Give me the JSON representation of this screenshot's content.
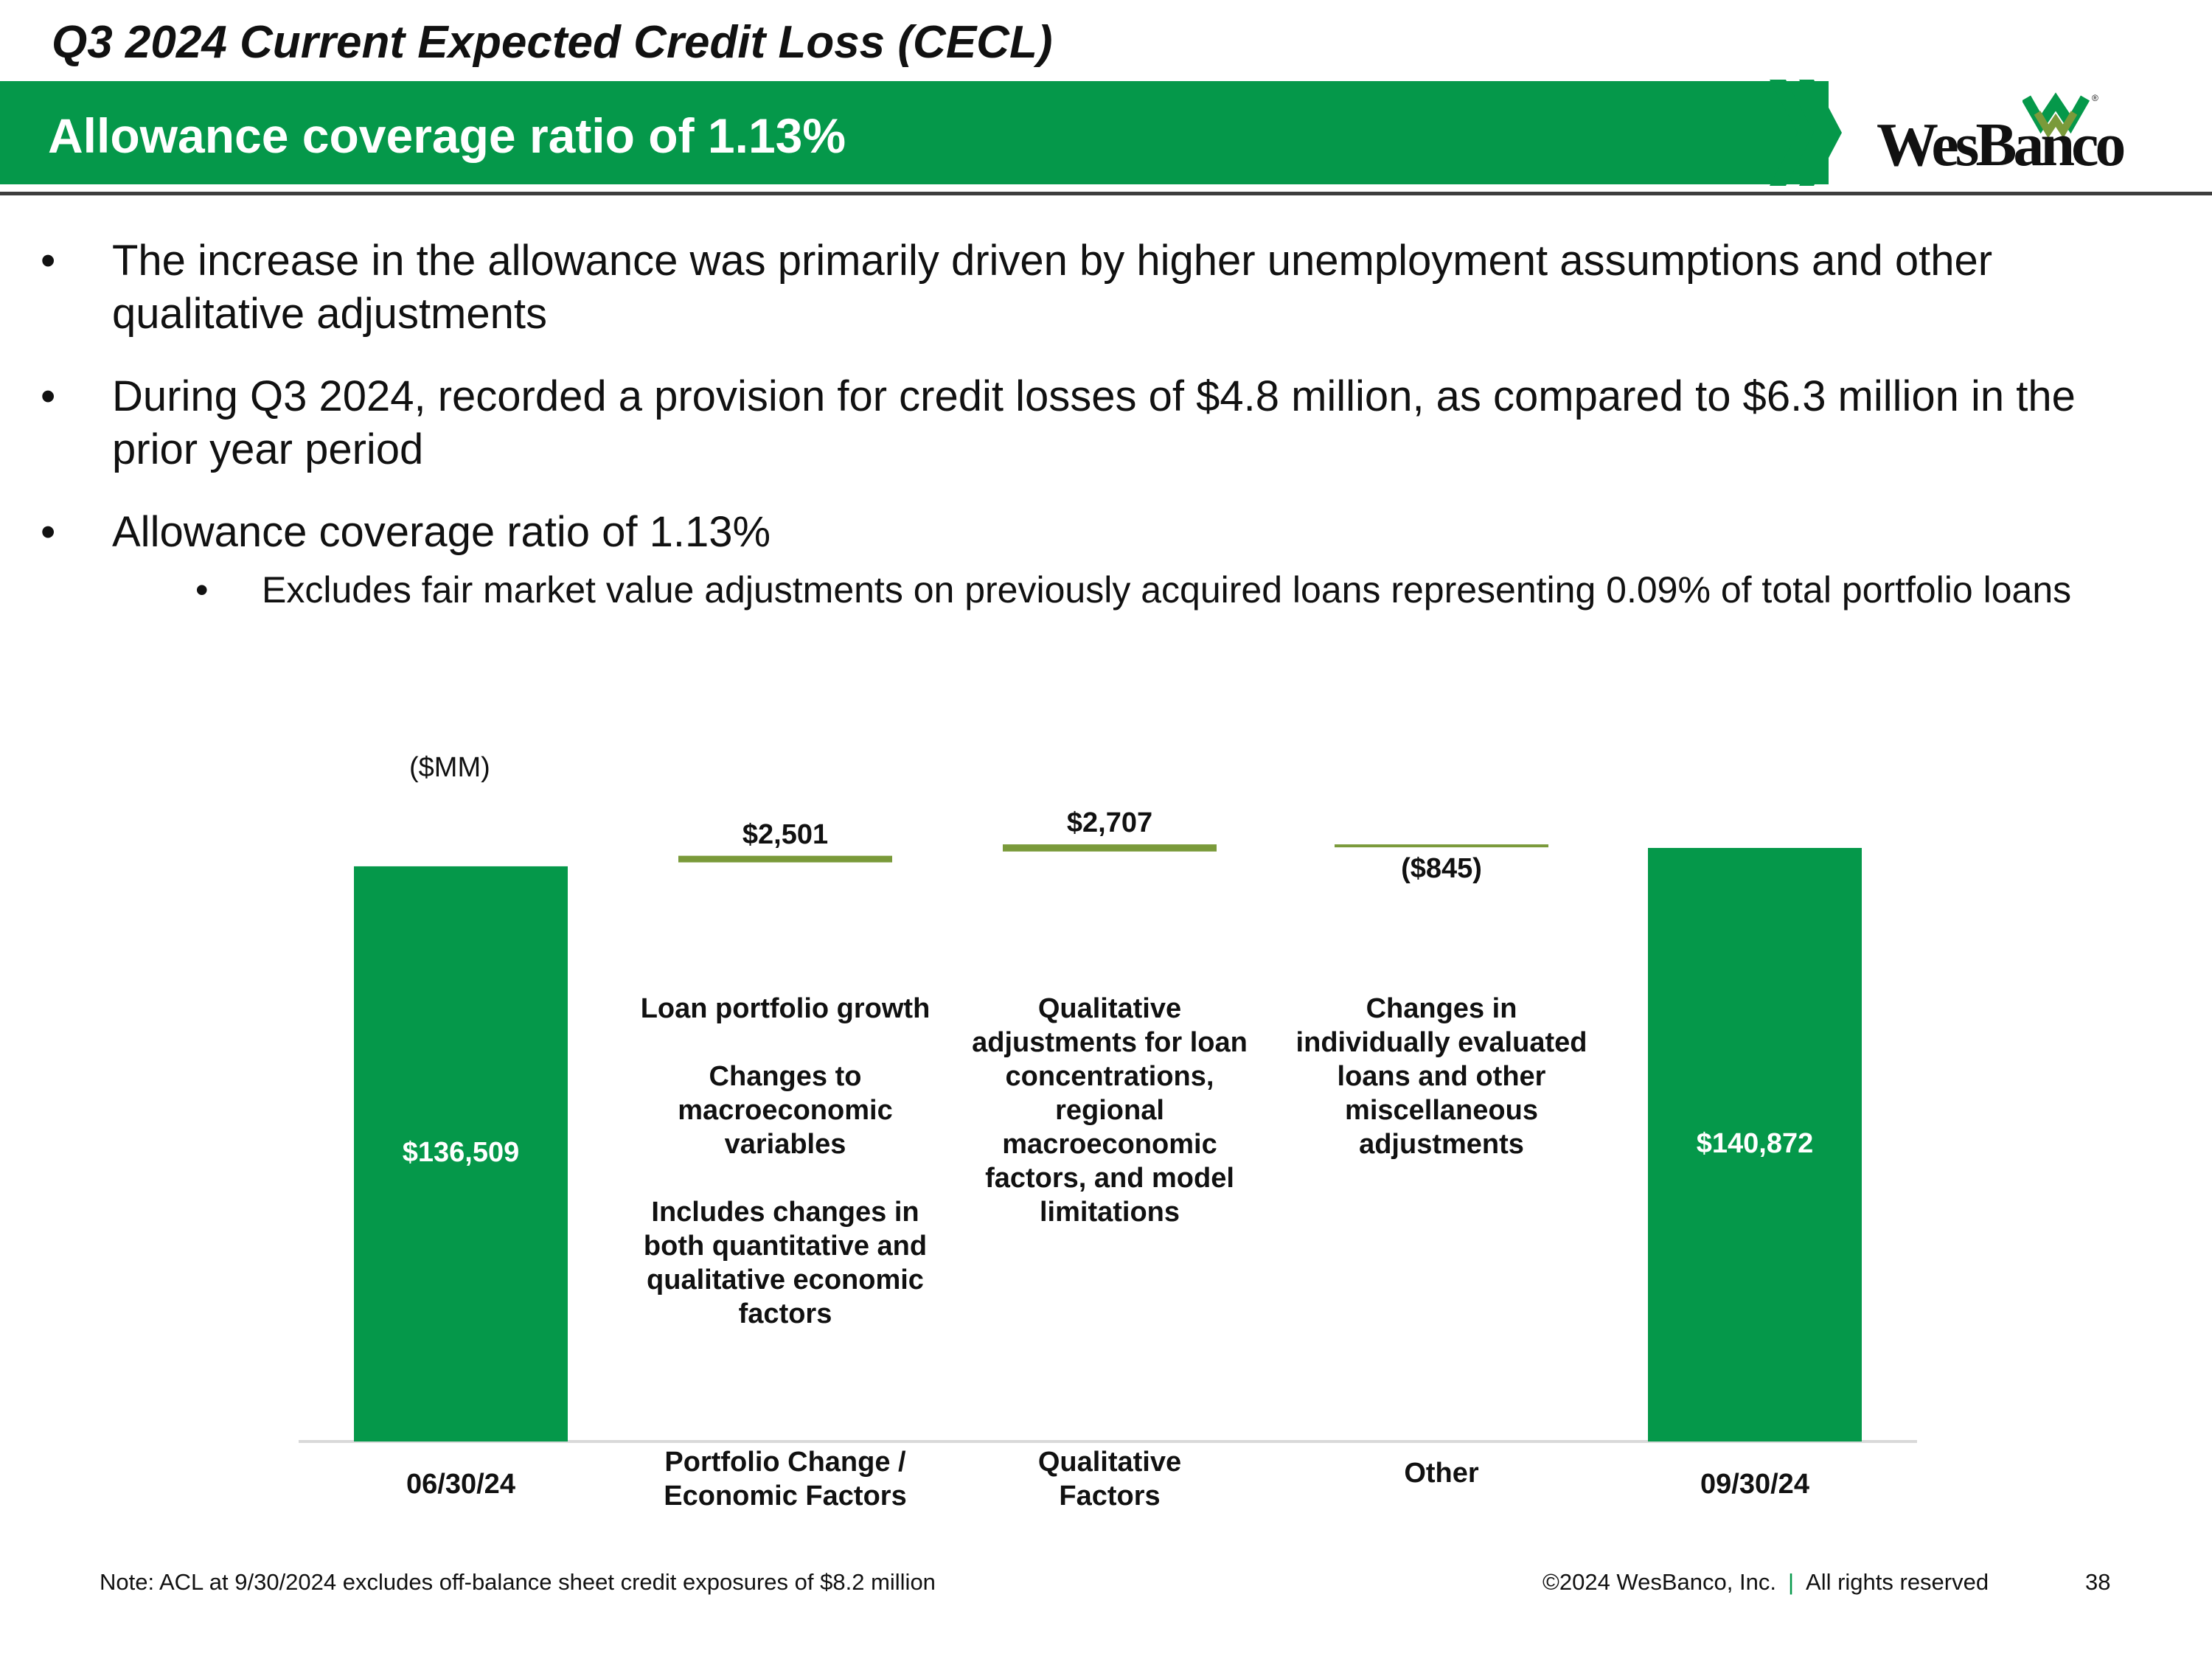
{
  "header": {
    "title": "Q3 2024 Current Expected Credit Loss (CECL)",
    "banner": "Allowance coverage ratio of 1.13%",
    "logo_text": "WesBanco",
    "logo_registered": "®"
  },
  "bullets": [
    {
      "level": 1,
      "text": "The increase in the allowance was primarily driven by higher unemployment assumptions and other qualitative adjustments"
    },
    {
      "level": 1,
      "text": "During Q3 2024, recorded a provision for credit losses of $4.8 million, as compared to $6.3 million in the prior year period"
    },
    {
      "level": 1,
      "text": "Allowance coverage ratio of 1.13%"
    },
    {
      "level": 2,
      "text": "Excludes fair market value adjustments on previously acquired loans representing 0.09% of total portfolio loans"
    }
  ],
  "bullet_glyph": "•",
  "chart_data": {
    "type": "bar",
    "subtype": "waterfall",
    "unit_label": "($MM)",
    "categories": [
      "06/30/24",
      "Portfolio Change / Economic Factors",
      "Qualitative Factors",
      "Other",
      "09/30/24"
    ],
    "values": [
      136509,
      2501,
      2707,
      -845,
      140872
    ],
    "kinds": [
      "total",
      "delta",
      "delta",
      "delta",
      "total"
    ],
    "value_labels": [
      "$136,509",
      "$2,501",
      "$2,707",
      "($845)",
      "$140,872"
    ],
    "descriptions": [
      "",
      "Loan portfolio growth\n\nChanges to macroeconomic variables\n\nIncludes changes in both quantitative and qualitative economic factors",
      "Qualitative adjustments for loan concentrations, regional macroeconomic factors, and model limitations",
      "Changes in individually evaluated loans and other miscellaneous adjustments",
      ""
    ],
    "colors": {
      "total": "#05984a",
      "delta": "#7a9a3a"
    },
    "grid": false,
    "legend": "none"
  },
  "footer": {
    "note": "Note: ACL at 9/30/2024 excludes off-balance sheet credit exposures of $8.2 million",
    "copyright": "©2024 WesBanco, Inc.",
    "separator": "|",
    "rights": "All rights reserved",
    "page": "38"
  }
}
